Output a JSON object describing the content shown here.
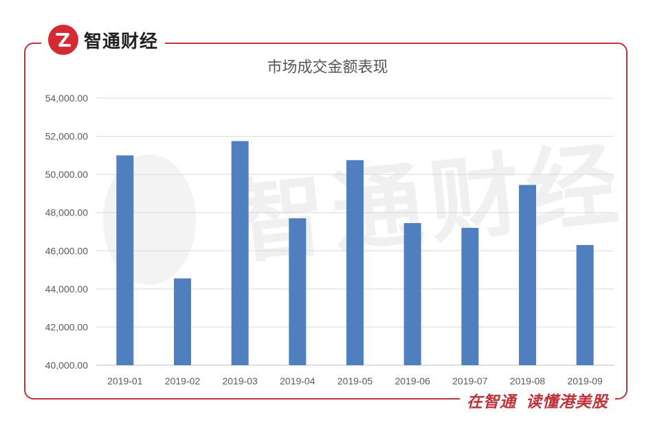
{
  "brand": {
    "name": "智通财经",
    "slogan_part1": "在智通",
    "slogan_part2": "读懂港美股",
    "watermark_text": "智通财经",
    "accent_color": "#c0323a",
    "logo_color": "#d42a30"
  },
  "chart_data": {
    "type": "bar",
    "title": "市场成交金额表现",
    "xlabel": "",
    "ylabel": "",
    "categories": [
      "2019-01",
      "2019-02",
      "2019-03",
      "2019-04",
      "2019-05",
      "2019-06",
      "2019-07",
      "2019-08",
      "2019-09"
    ],
    "values": [
      51000,
      44550,
      51750,
      47700,
      50750,
      47450,
      47200,
      49450,
      46300
    ],
    "ylim": [
      40000,
      54000
    ],
    "yticks": [
      "40,000.00",
      "42,000.00",
      "44,000.00",
      "46,000.00",
      "48,000.00",
      "50,000.00",
      "52,000.00",
      "54,000.00"
    ],
    "ytick_values": [
      40000,
      42000,
      44000,
      46000,
      48000,
      50000,
      52000,
      54000
    ],
    "bar_color": "#4f7fbf",
    "grid": true,
    "legend": "none"
  }
}
